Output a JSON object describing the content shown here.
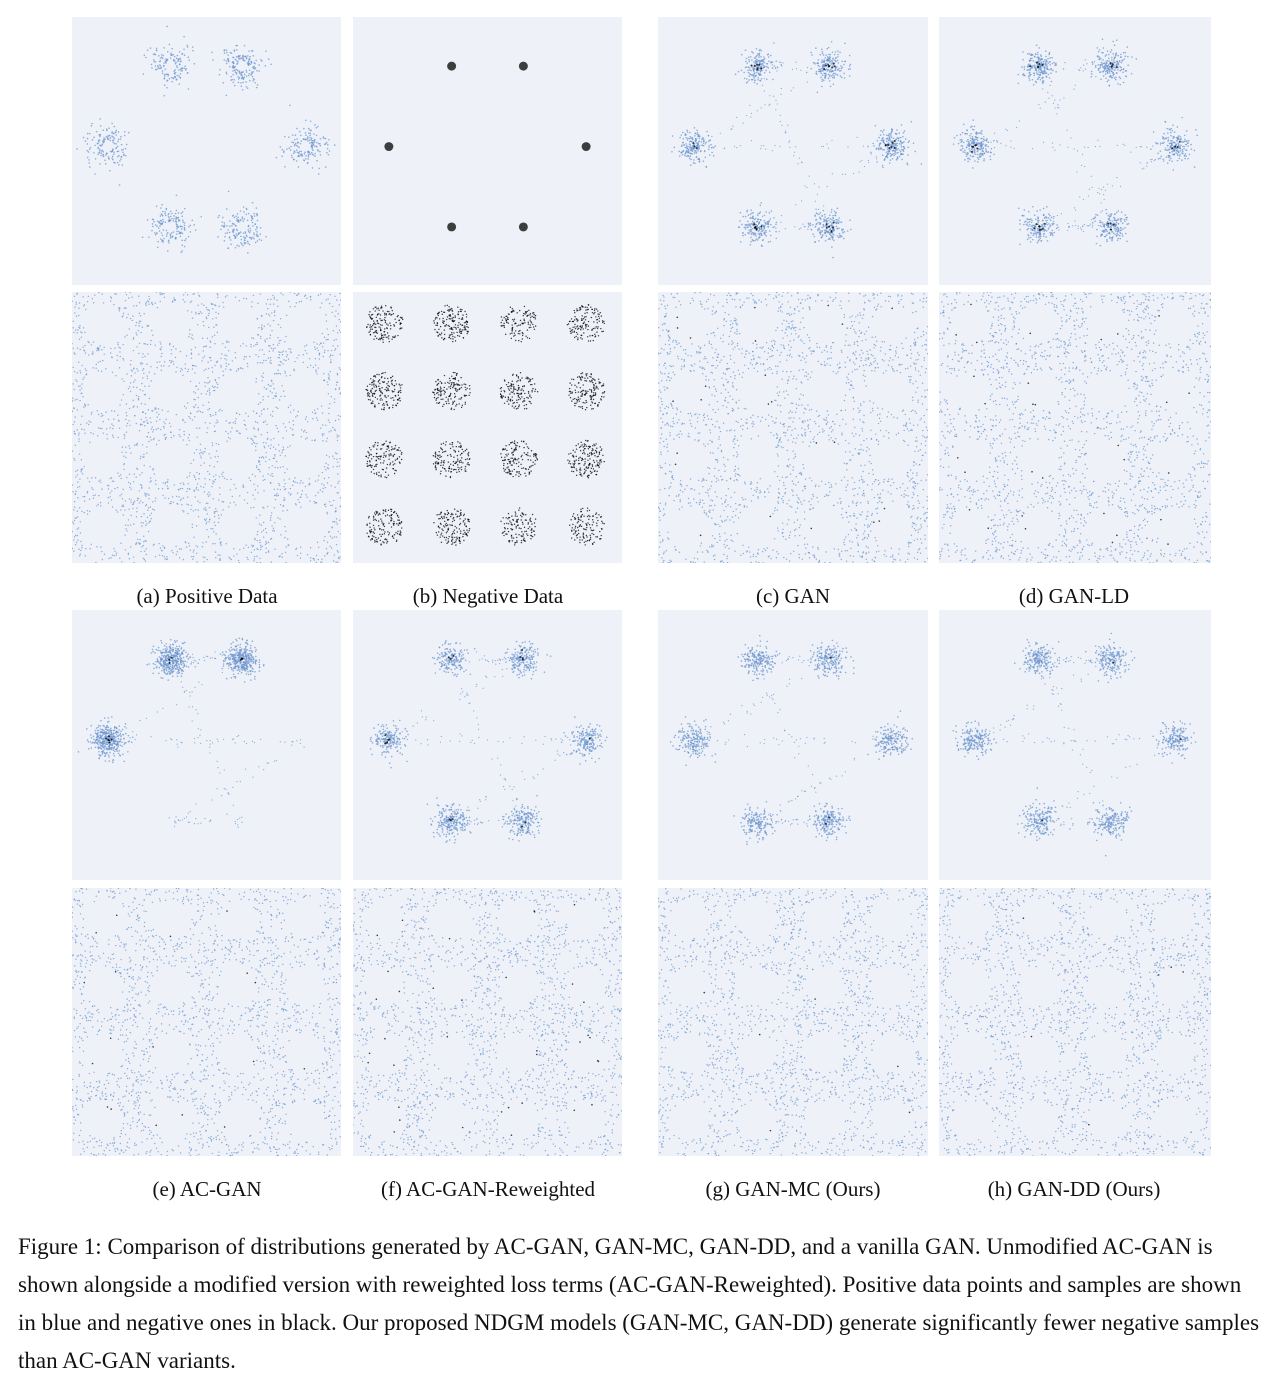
{
  "figure": {
    "subcaptions": {
      "a": "(a) Positive Data",
      "b": "(b) Negative Data",
      "c": "(c) GAN",
      "d": "(d) GAN-LD",
      "e": "(e) AC-GAN",
      "f": "(f) AC-GAN-Reweighted",
      "g": "(g) GAN-MC (Ours)",
      "h": "(h) GAN-DD (Ours)"
    },
    "caption": "Figure 1: Comparison of distributions generated by AC-GAN, GAN-MC, GAN-DD, and a vanilla GAN. Unmodified AC-GAN is shown alongside a modified version with reweighted loss terms (AC-GAN-Reweighted). Positive data points and samples are shown in blue and negative ones in black. Our proposed NDGM models (GAN-MC, GAN-DD) generate significantly fewer negative samples than AC-GAN variants."
  },
  "colors": {
    "positive": "#6e95cf",
    "negative": "#000000",
    "panel_background": "#eef2f8"
  },
  "chart_data": [
    {
      "type": "scatter",
      "panel": "a",
      "dataset": "ring",
      "samples": "positive",
      "negative_rate": 0.0
    },
    {
      "type": "scatter",
      "panel": "b",
      "dataset": "ring",
      "samples": "negative",
      "negative_rate": 1.0
    },
    {
      "type": "scatter",
      "panel": "c",
      "dataset": "ring",
      "samples": "mixed",
      "negative_rate": 0.25
    },
    {
      "type": "scatter",
      "panel": "d",
      "dataset": "ring",
      "samples": "mixed",
      "negative_rate": 0.22
    },
    {
      "type": "scatter",
      "panel": "e",
      "dataset": "ring",
      "samples": "mixed",
      "negative_rate": 0.08
    },
    {
      "type": "scatter",
      "panel": "f",
      "dataset": "ring",
      "samples": "mixed",
      "negative_rate": 0.12
    },
    {
      "type": "scatter",
      "panel": "g",
      "dataset": "ring",
      "samples": "mixed",
      "negative_rate": 0.02
    },
    {
      "type": "scatter",
      "panel": "h",
      "dataset": "ring",
      "samples": "mixed",
      "negative_rate": 0.02
    },
    {
      "type": "scatter",
      "panel": "a",
      "dataset": "grid",
      "samples": "positive",
      "negative_rate": 0.0
    },
    {
      "type": "scatter",
      "panel": "b",
      "dataset": "grid",
      "samples": "negative",
      "negative_rate": 1.0
    },
    {
      "type": "scatter",
      "panel": "c",
      "dataset": "grid",
      "samples": "mixed",
      "negative_rate": 0.04
    },
    {
      "type": "scatter",
      "panel": "d",
      "dataset": "grid",
      "samples": "mixed",
      "negative_rate": 0.05
    },
    {
      "type": "scatter",
      "panel": "e",
      "dataset": "grid",
      "samples": "mixed",
      "negative_rate": 0.03
    },
    {
      "type": "scatter",
      "panel": "f",
      "dataset": "grid",
      "samples": "mixed",
      "negative_rate": 0.06
    },
    {
      "type": "scatter",
      "panel": "g",
      "dataset": "grid",
      "samples": "mixed",
      "negative_rate": 0.01
    },
    {
      "type": "scatter",
      "panel": "h",
      "dataset": "grid",
      "samples": "mixed",
      "negative_rate": 0.01
    }
  ]
}
